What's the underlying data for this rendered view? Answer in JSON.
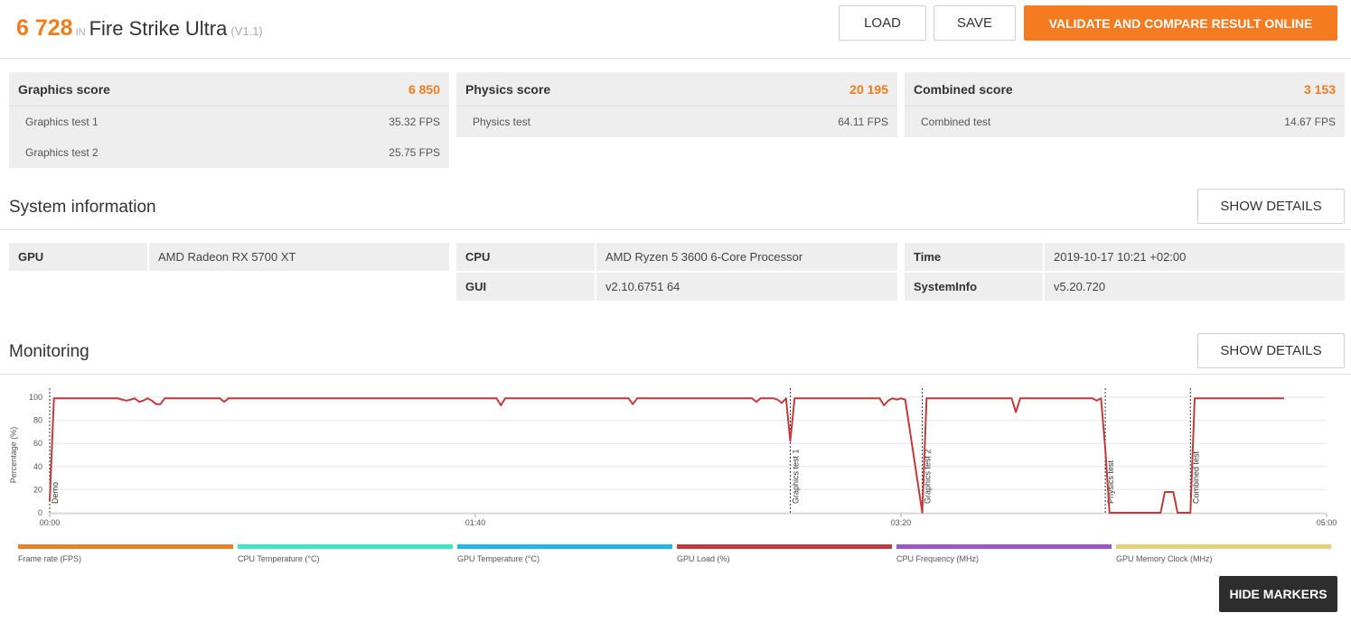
{
  "header": {
    "score": "6 728",
    "in_word": "IN",
    "benchmark": "Fire Strike Ultra",
    "version": "(V1.1)",
    "load_label": "LOAD",
    "save_label": "SAVE",
    "validate_label": "VALIDATE AND COMPARE RESULT ONLINE"
  },
  "scores": {
    "graphics": {
      "label": "Graphics score",
      "value": "6 850",
      "tests": [
        {
          "name": "Graphics test 1",
          "value": "35.32 FPS"
        },
        {
          "name": "Graphics test 2",
          "value": "25.75 FPS"
        }
      ]
    },
    "physics": {
      "label": "Physics score",
      "value": "20 195",
      "tests": [
        {
          "name": "Physics test",
          "value": "64.11 FPS"
        }
      ]
    },
    "combined": {
      "label": "Combined score",
      "value": "3 153",
      "tests": [
        {
          "name": "Combined test",
          "value": "14.67 FPS"
        }
      ]
    }
  },
  "system": {
    "title": "System information",
    "show_details_label": "SHOW DETAILS",
    "gpu": {
      "key": "GPU",
      "value": "AMD Radeon RX 5700 XT"
    },
    "cpu": {
      "key": "CPU",
      "value": "AMD Ryzen 5 3600 6-Core Processor"
    },
    "gui": {
      "key": "GUI",
      "value": "v2.10.6751 64"
    },
    "time": {
      "key": "Time",
      "value": "2019-10-17 10:21 +02:00"
    },
    "sysinfo": {
      "key": "SystemInfo",
      "value": "v5.20.720"
    }
  },
  "monitoring": {
    "title": "Monitoring",
    "show_details_label": "SHOW DETAILS",
    "hide_markers_label": "HIDE MARKERS",
    "legend": [
      {
        "label": "Frame rate (FPS)",
        "color": "#e8822a"
      },
      {
        "label": "CPU Temperature (°C)",
        "color": "#3ee8c0"
      },
      {
        "label": "GPU Temperature (°C)",
        "color": "#25b4e8"
      },
      {
        "label": "GPU Load (%)",
        "color": "#c03c3c"
      },
      {
        "label": "CPU Frequency (MHz)",
        "color": "#9a55c8"
      },
      {
        "label": "GPU Memory Clock (MHz)",
        "color": "#e5d07a"
      }
    ]
  },
  "chart_data": {
    "type": "line",
    "ylabel": "Percentage (%)",
    "xlabel": "",
    "ylim": [
      0,
      100
    ],
    "xlim": [
      0,
      300
    ],
    "y_ticks": [
      "0",
      "20",
      "40",
      "60",
      "80",
      "100"
    ],
    "x_ticks": [
      {
        "t": 0,
        "label": "00:00"
      },
      {
        "t": 100,
        "label": "01:40"
      },
      {
        "t": 200,
        "label": "03:20"
      },
      {
        "t": 300,
        "label": "05:00"
      }
    ],
    "markers": [
      {
        "t": 0,
        "label": "Demo"
      },
      {
        "t": 174,
        "label": "Graphics test 1"
      },
      {
        "t": 205,
        "label": "Graphics test 2"
      },
      {
        "t": 248,
        "label": "Physics test"
      },
      {
        "t": 268,
        "label": "Combined test"
      }
    ],
    "series": [
      {
        "name": "GPU Load (%)",
        "color": "#c03c3c",
        "x": [
          0,
          1,
          2,
          14,
          16,
          17,
          18,
          19,
          20,
          21,
          22,
          23,
          24,
          25,
          26,
          27,
          40,
          41,
          42,
          43,
          60,
          80,
          100,
          105,
          106,
          107,
          110,
          120,
          130,
          136,
          137,
          138,
          140,
          150,
          160,
          165,
          166,
          167,
          170,
          171,
          172,
          173,
          174,
          175,
          180,
          190,
          195,
          196,
          197,
          198,
          199,
          200,
          201,
          205,
          206,
          207,
          210,
          220,
          226,
          227,
          228,
          230,
          240,
          245,
          246,
          247,
          248,
          249,
          250,
          258,
          259,
          260,
          261,
          262,
          264,
          265,
          268,
          269,
          270,
          280,
          290
        ],
        "y": [
          10,
          99,
          99,
          99,
          99,
          98,
          97,
          98,
          99,
          96,
          97,
          99,
          97,
          94,
          94,
          99,
          99,
          96,
          99,
          99,
          99,
          99,
          99,
          99,
          93,
          99,
          99,
          99,
          99,
          99,
          94,
          99,
          99,
          99,
          99,
          99,
          96,
          99,
          99,
          98,
          95,
          99,
          62,
          99,
          99,
          99,
          99,
          93,
          97,
          99,
          98,
          99,
          98,
          0,
          99,
          99,
          99,
          99,
          99,
          87,
          99,
          99,
          99,
          99,
          97,
          99,
          55,
          0,
          0,
          0,
          0,
          0,
          0,
          18,
          18,
          0,
          0,
          99,
          99,
          99,
          99
        ]
      }
    ]
  }
}
